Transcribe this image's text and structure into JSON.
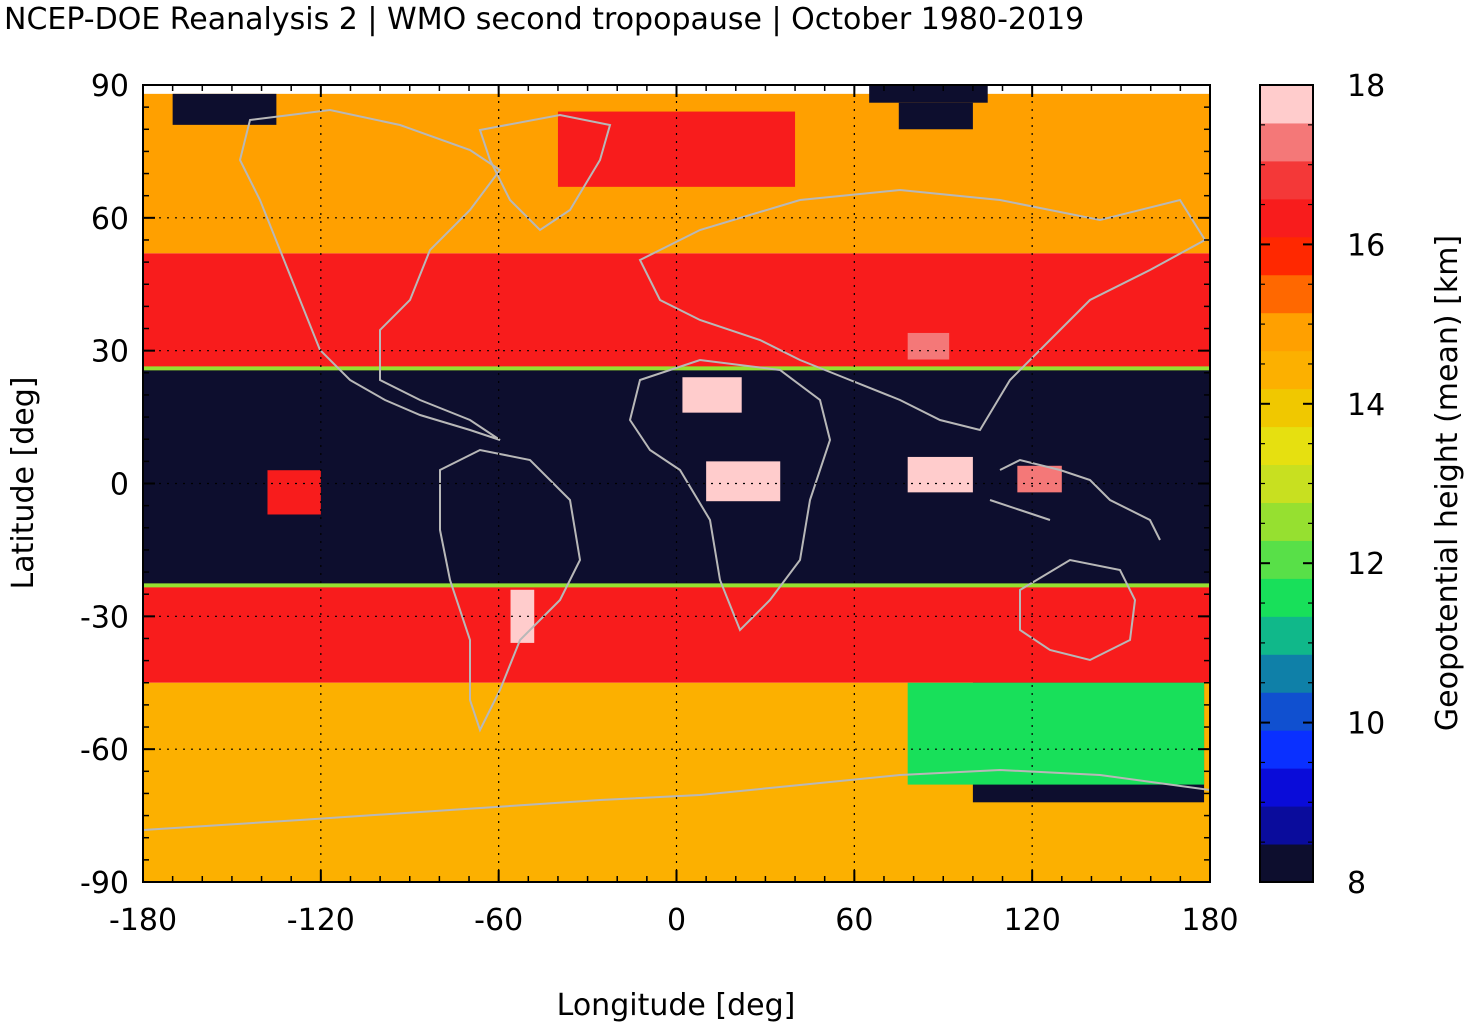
{
  "title": "NCEP-DOE Reanalysis 2 | WMO second tropopause | October 1980-2019",
  "chart_data": {
    "type": "heatmap",
    "xlabel": "Longitude [deg]",
    "ylabel": "Latitude [deg]",
    "colorbar_label": "Geopotential height (mean) [km]",
    "xlim": [
      -180,
      180
    ],
    "ylim": [
      -90,
      90
    ],
    "x_ticks": [
      "-180",
      "-120",
      "-60",
      "0",
      "60",
      "120",
      "180"
    ],
    "y_ticks": [
      "90",
      "60",
      "30",
      "0",
      "-30",
      "-60",
      "-90"
    ],
    "colorbar_ticks": [
      "18",
      "16",
      "14",
      "12",
      "10",
      "8"
    ],
    "colorbar_range": [
      8,
      18
    ],
    "colorbar_colors": [
      "#0d0e2e",
      "#0a0c9c",
      "#0a0cd9",
      "#0a30ff",
      "#1050d0",
      "#0f80a8",
      "#10b88a",
      "#18e05a",
      "#58e048",
      "#96e030",
      "#c8e020",
      "#e6e010",
      "#f0c800",
      "#fcb000",
      "#ffa000",
      "#ff6800",
      "#ff2800",
      "#f81c1c",
      "#f43838",
      "#f47878",
      "#ffcccc"
    ],
    "grid": true,
    "regions": [
      {
        "label": "tropics_low",
        "lat": [
          -23,
          26
        ],
        "lon": [
          -180,
          180
        ],
        "value": 8
      },
      {
        "label": "nh_midlat",
        "lat": [
          26,
          52
        ],
        "lon": [
          -180,
          180
        ],
        "value": 16.3
      },
      {
        "label": "sh_midlat",
        "lat": [
          -45,
          -23
        ],
        "lon": [
          -180,
          180
        ],
        "value": 16.3
      },
      {
        "label": "nh_high",
        "lat": [
          52,
          88
        ],
        "lon": [
          -180,
          180
        ],
        "value": 14.8
      },
      {
        "label": "sh_high",
        "lat": [
          -90,
          -45
        ],
        "lon": [
          -180,
          180
        ],
        "value": 14.3
      },
      {
        "label": "arctic_band",
        "lat": [
          67,
          84
        ],
        "lon": [
          -40,
          40
        ],
        "value": 16.4
      },
      {
        "label": "n_africa_peak",
        "lat": [
          16,
          24
        ],
        "lon": [
          2,
          22
        ],
        "value": 17.7
      },
      {
        "label": "africa_eq",
        "lat": [
          -4,
          5
        ],
        "lon": [
          10,
          35
        ],
        "value": 17.7
      },
      {
        "label": "indian_ocean_eq",
        "lat": [
          -2,
          6
        ],
        "lon": [
          78,
          100
        ],
        "value": 17.7
      },
      {
        "label": "tibet_peak",
        "lat": [
          28,
          34
        ],
        "lon": [
          78,
          92
        ],
        "value": 17.3
      },
      {
        "label": "pacific_eq",
        "lat": [
          -2,
          4
        ],
        "lon": [
          115,
          130
        ],
        "value": 17.5
      },
      {
        "label": "epac_patch",
        "lat": [
          -7,
          3
        ],
        "lon": [
          -138,
          -120
        ],
        "value": 16.5
      },
      {
        "label": "s_america_sub",
        "lat": [
          -36,
          -24
        ],
        "lon": [
          -56,
          -48
        ],
        "value": 17.6
      },
      {
        "label": "s_ocean_low",
        "lat": [
          -72,
          -45
        ],
        "lon": [
          100,
          178
        ],
        "value": 8
      },
      {
        "label": "s_ocean_mid",
        "lat": [
          -68,
          -45
        ],
        "lon": [
          78,
          178
        ],
        "value": 11.5
      },
      {
        "label": "arctic_low_west",
        "lat": [
          81,
          88
        ],
        "lon": [
          -170,
          -135
        ],
        "value": 8
      },
      {
        "label": "arctic_low_north",
        "lat": [
          86,
          90
        ],
        "lon": [
          65,
          105
        ],
        "value": 8
      },
      {
        "label": "arctic_low_east",
        "lat": [
          80,
          86
        ],
        "lon": [
          75,
          100
        ],
        "value": 8
      }
    ]
  }
}
